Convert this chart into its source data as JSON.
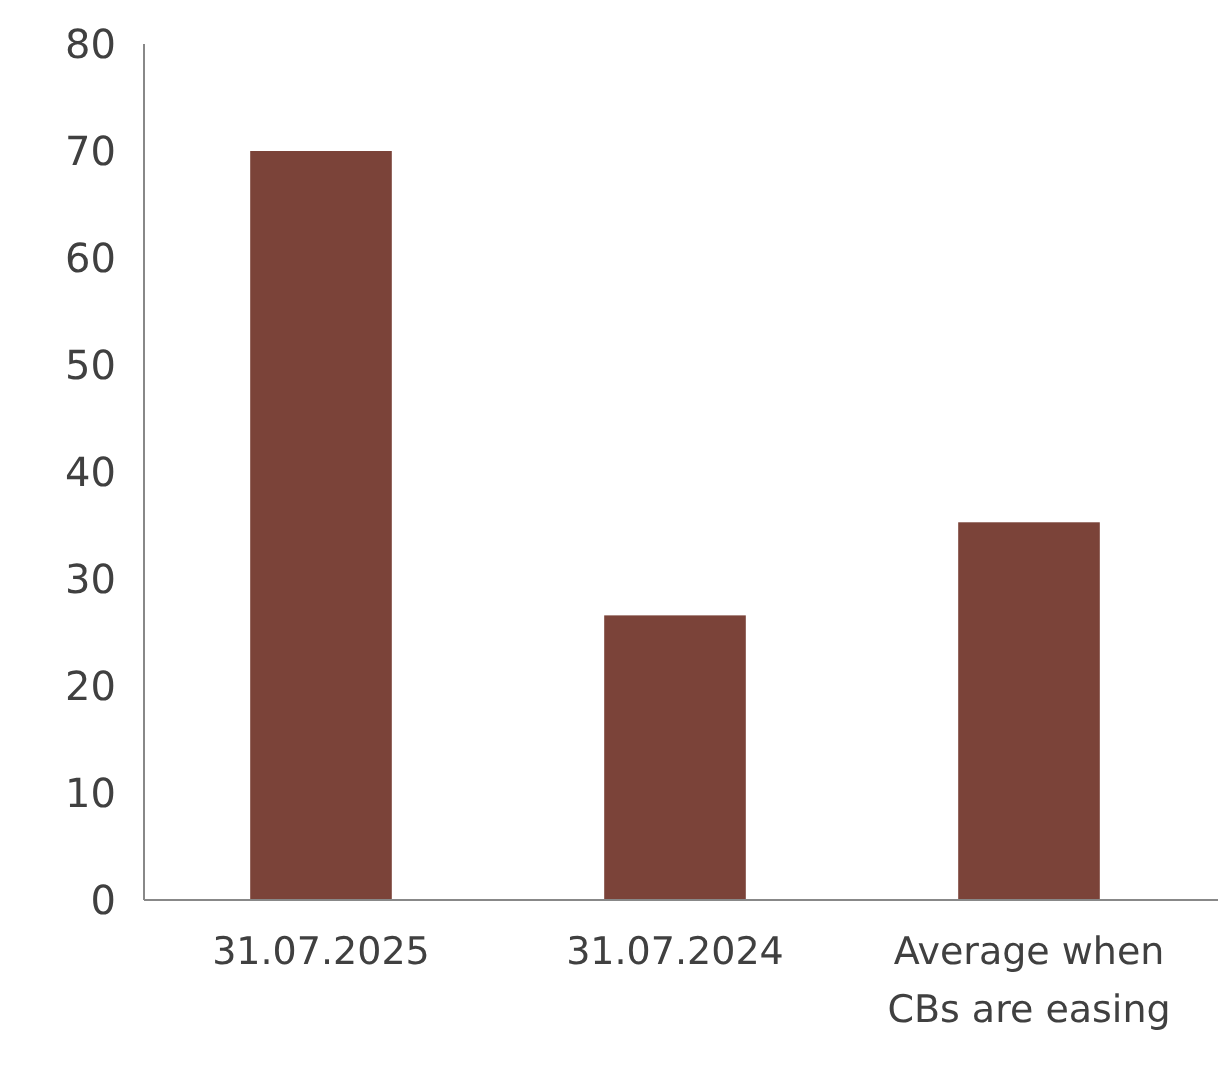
{
  "chart_data": {
    "type": "bar",
    "categories": [
      "31.07.2025",
      "31.07.2024",
      "Average when CBs are easing"
    ],
    "values": [
      70,
      26.6,
      35.3
    ],
    "color": "#7b4339",
    "ylim": [
      0,
      80
    ],
    "yticks": [
      0,
      10,
      20,
      30,
      40,
      50,
      60,
      70,
      80
    ]
  }
}
